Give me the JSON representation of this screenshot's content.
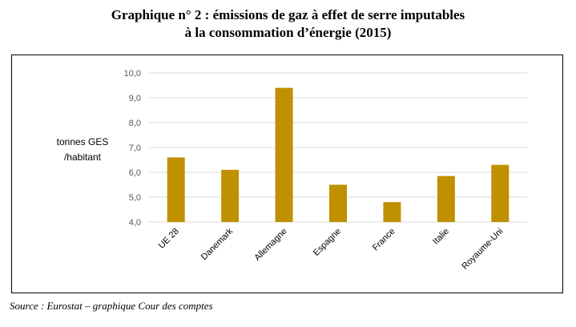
{
  "title_line1": "Graphique n° 2 : émissions de gaz à effet de serre imputables",
  "title_line2": "à la consommation d’énergie (2015)",
  "source": "Source : Eurostat – graphique Cour des comptes",
  "colors": {
    "bar": "#BF9000",
    "grid": "#D9D9D9",
    "frame": "#000000"
  },
  "chart_data": {
    "type": "bar",
    "title": "Graphique n° 2 : émissions de gaz à effet de serre imputables à la consommation d’énergie (2015)",
    "ylabel_line1": "tonnes GES",
    "ylabel_line2": "/habitant",
    "xlabel": "",
    "categories": [
      "UE 28",
      "Danemark",
      "Allemagne",
      "Espagne",
      "France",
      "Italie",
      "Royaume-Uni"
    ],
    "values": [
      6.6,
      6.1,
      9.4,
      5.5,
      4.8,
      5.85,
      6.3
    ],
    "ylim": [
      4.0,
      10.0
    ],
    "yticks": [
      "4,0",
      "5,0",
      "6,0",
      "7,0",
      "8,0",
      "9,0",
      "10,0"
    ],
    "grid": true,
    "legend": "none"
  }
}
